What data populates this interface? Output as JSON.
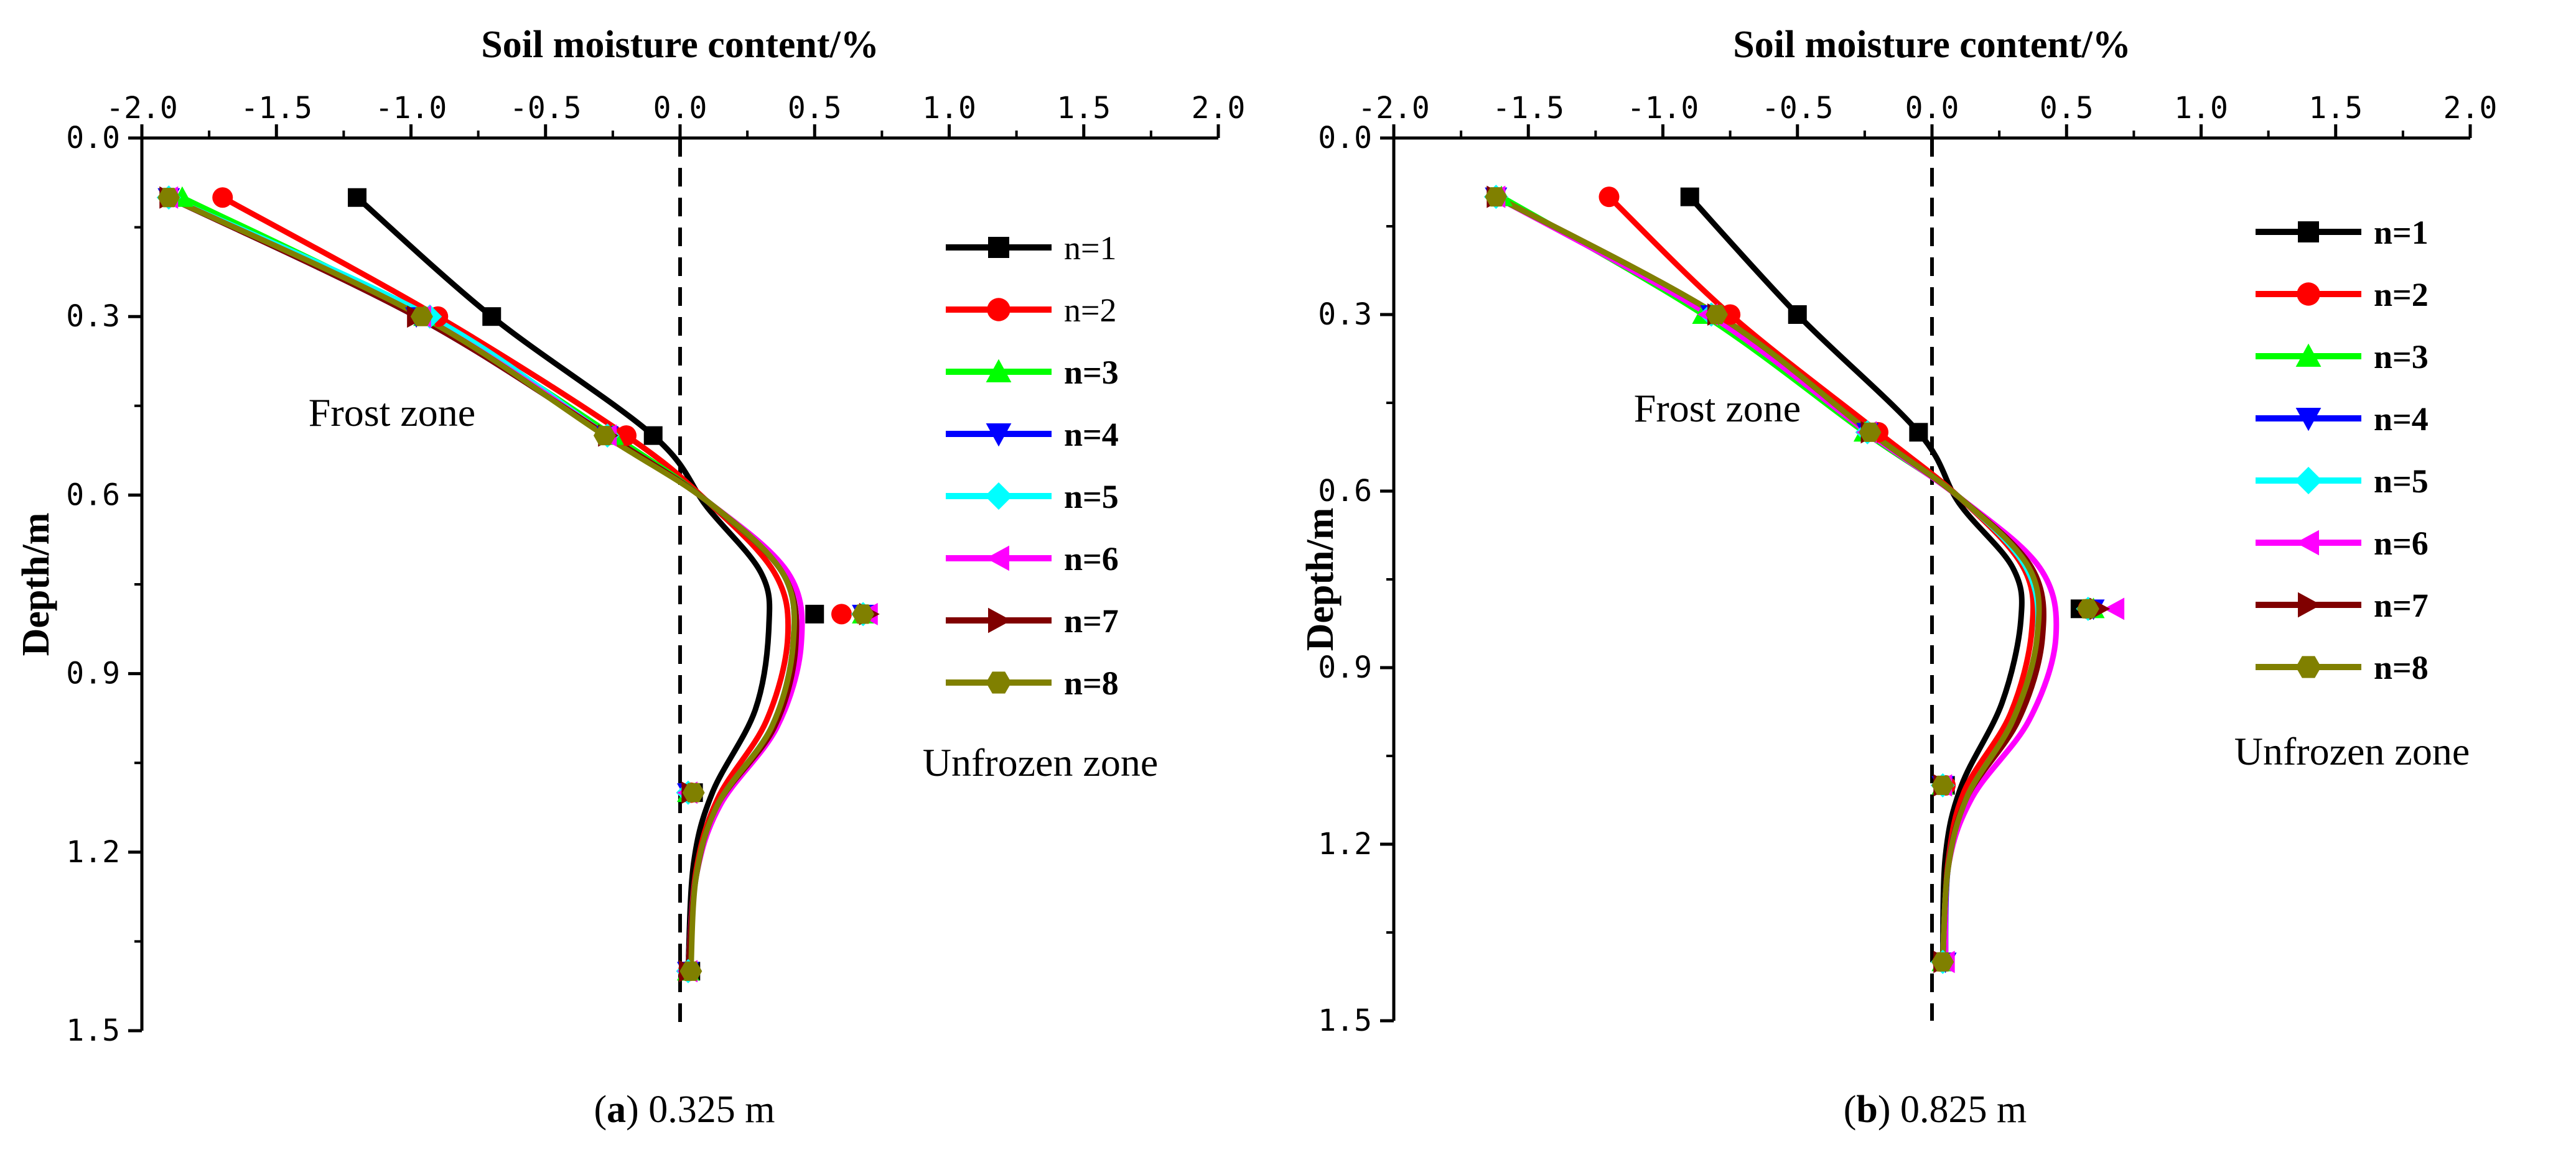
{
  "chart_data": [
    {
      "type": "line",
      "caption": {
        "prefix": "(",
        "letter": "a",
        "suffix": ") 0.325 m"
      },
      "xlabel": "Soil moisture content/%",
      "ylabel": "Depth/m",
      "xlim": [
        -2.0,
        2.0
      ],
      "ylim": [
        0.0,
        1.5
      ],
      "x_ticks": [
        "-2.0",
        "-1.5",
        "-1.0",
        "-0.5",
        "0.0",
        "0.5",
        "1.0",
        "1.5",
        "2.0"
      ],
      "y_ticks": [
        "0.0",
        "0.3",
        "0.6",
        "0.9",
        "1.2",
        "1.5"
      ],
      "annotations": [
        "Frost zone",
        "Unfrozen zone"
      ],
      "legend_position": "right",
      "zero_reference_line": 0.0,
      "depths": [
        0.1,
        0.3,
        0.5,
        0.8,
        1.1,
        1.4
      ],
      "series": [
        {
          "name": "n=1",
          "bold": false,
          "color": "#000000",
          "marker": "square",
          "x": [
            -1.2,
            -0.7,
            -0.1,
            0.5,
            0.05,
            0.04
          ],
          "curve": [
            [
              -1.2,
              0.1
            ],
            [
              -0.7,
              0.3
            ],
            [
              -0.1,
              0.5
            ],
            [
              0.1,
              0.62
            ],
            [
              0.3,
              0.73
            ],
            [
              0.33,
              0.82
            ],
            [
              0.28,
              0.96
            ],
            [
              0.12,
              1.1
            ],
            [
              0.05,
              1.22
            ],
            [
              0.03,
              1.4
            ]
          ]
        },
        {
          "name": "n=2",
          "bold": false,
          "color": "#ff0000",
          "marker": "circle",
          "x": [
            -1.7,
            -0.9,
            -0.2,
            0.6,
            0.04,
            0.03
          ],
          "curve": [
            [
              -1.7,
              0.1
            ],
            [
              -0.9,
              0.3
            ],
            [
              -0.2,
              0.5
            ],
            [
              0.1,
              0.61
            ],
            [
              0.35,
              0.73
            ],
            [
              0.4,
              0.84
            ],
            [
              0.32,
              0.98
            ],
            [
              0.14,
              1.11
            ],
            [
              0.06,
              1.23
            ],
            [
              0.03,
              1.4
            ]
          ]
        },
        {
          "name": "n=3",
          "bold": true,
          "color": "#00ff00",
          "marker": "triangle-up",
          "x": [
            -1.85,
            -0.95,
            -0.25,
            0.68,
            0.03,
            0.03
          ],
          "curve": [
            [
              -1.85,
              0.1
            ],
            [
              -0.95,
              0.3
            ],
            [
              -0.25,
              0.5
            ],
            [
              0.1,
              0.61
            ],
            [
              0.38,
              0.73
            ],
            [
              0.43,
              0.85
            ],
            [
              0.34,
              0.99
            ],
            [
              0.14,
              1.12
            ],
            [
              0.06,
              1.24
            ],
            [
              0.03,
              1.4
            ]
          ]
        },
        {
          "name": "n=4",
          "bold": true,
          "color": "#0000ff",
          "marker": "triangle-down",
          "x": [
            -1.9,
            -0.98,
            -0.27,
            0.68,
            0.03,
            0.03
          ],
          "curve": [
            [
              -1.9,
              0.1
            ],
            [
              -0.98,
              0.3
            ],
            [
              -0.27,
              0.5
            ],
            [
              0.1,
              0.61
            ],
            [
              0.38,
              0.73
            ],
            [
              0.42,
              0.85
            ],
            [
              0.34,
              0.99
            ],
            [
              0.14,
              1.12
            ],
            [
              0.06,
              1.24
            ],
            [
              0.03,
              1.4
            ]
          ]
        },
        {
          "name": "n=5",
          "bold": true,
          "color": "#00ffff",
          "marker": "diamond",
          "x": [
            -1.9,
            -0.93,
            -0.27,
            0.68,
            0.03,
            0.03
          ],
          "curve": [
            [
              -1.9,
              0.1
            ],
            [
              -0.93,
              0.3
            ],
            [
              -0.27,
              0.5
            ],
            [
              0.1,
              0.61
            ],
            [
              0.38,
              0.73
            ],
            [
              0.42,
              0.85
            ],
            [
              0.34,
              0.99
            ],
            [
              0.14,
              1.12
            ],
            [
              0.06,
              1.24
            ],
            [
              0.03,
              1.4
            ]
          ]
        },
        {
          "name": "n=6",
          "bold": true,
          "color": "#ff00ff",
          "marker": "triangle-left",
          "x": [
            -1.9,
            -0.96,
            -0.27,
            0.7,
            0.03,
            0.03
          ],
          "curve": [
            [
              -1.9,
              0.1
            ],
            [
              -0.96,
              0.3
            ],
            [
              -0.27,
              0.5
            ],
            [
              0.1,
              0.61
            ],
            [
              0.4,
              0.73
            ],
            [
              0.45,
              0.85
            ],
            [
              0.36,
              0.99
            ],
            [
              0.15,
              1.12
            ],
            [
              0.06,
              1.24
            ],
            [
              0.03,
              1.4
            ]
          ]
        },
        {
          "name": "n=7",
          "bold": true,
          "color": "#800000",
          "marker": "triangle-right",
          "x": [
            -1.9,
            -0.98,
            -0.27,
            0.7,
            0.04,
            0.03
          ],
          "curve": [
            [
              -1.9,
              0.1
            ],
            [
              -0.98,
              0.3
            ],
            [
              -0.27,
              0.5
            ],
            [
              0.1,
              0.61
            ],
            [
              0.38,
              0.73
            ],
            [
              0.43,
              0.85
            ],
            [
              0.35,
              0.99
            ],
            [
              0.14,
              1.12
            ],
            [
              0.06,
              1.24
            ],
            [
              0.03,
              1.4
            ]
          ]
        },
        {
          "name": "n=8",
          "bold": true,
          "color": "#808000",
          "marker": "hexagon",
          "x": [
            -1.9,
            -0.96,
            -0.28,
            0.68,
            0.05,
            0.04
          ],
          "curve": [
            [
              -1.9,
              0.1
            ],
            [
              -0.96,
              0.3
            ],
            [
              -0.28,
              0.5
            ],
            [
              0.1,
              0.61
            ],
            [
              0.38,
              0.73
            ],
            [
              0.42,
              0.85
            ],
            [
              0.34,
              0.99
            ],
            [
              0.14,
              1.12
            ],
            [
              0.06,
              1.24
            ],
            [
              0.04,
              1.4
            ]
          ]
        }
      ]
    },
    {
      "type": "line",
      "caption": {
        "prefix": "(",
        "letter": "b",
        "suffix": ") 0.825 m"
      },
      "xlabel": "Soil moisture content/%",
      "ylabel": "Depth/m",
      "xlim": [
        -2.0,
        2.0
      ],
      "ylim": [
        0.0,
        1.5
      ],
      "x_ticks": [
        "-2.0",
        "-1.5",
        "-1.0",
        "-0.5",
        "0.0",
        "0.5",
        "1.0",
        "1.5",
        "2.0"
      ],
      "y_ticks": [
        "0.0",
        "0.3",
        "0.6",
        "0.9",
        "1.2",
        "1.5"
      ],
      "annotations": [
        "Frost zone",
        "Unfrozen zone"
      ],
      "legend_position": "right",
      "zero_reference_line": 0.0,
      "depths": [
        0.1,
        0.3,
        0.5,
        0.8,
        1.1,
        1.4
      ],
      "series": [
        {
          "name": "n=1",
          "bold": true,
          "color": "#000000",
          "marker": "square",
          "x": [
            -0.9,
            -0.5,
            -0.05,
            0.55,
            0.05,
            0.04
          ],
          "curve": [
            [
              -0.9,
              0.1
            ],
            [
              -0.5,
              0.3
            ],
            [
              -0.05,
              0.5
            ],
            [
              0.1,
              0.62
            ],
            [
              0.3,
              0.73
            ],
            [
              0.33,
              0.82
            ],
            [
              0.26,
              0.96
            ],
            [
              0.11,
              1.1
            ],
            [
              0.05,
              1.22
            ],
            [
              0.04,
              1.4
            ]
          ]
        },
        {
          "name": "n=2",
          "bold": true,
          "color": "#ff0000",
          "marker": "circle",
          "x": [
            -1.2,
            -0.75,
            -0.2,
            0.58,
            0.05,
            0.04
          ],
          "curve": [
            [
              -1.2,
              0.1
            ],
            [
              -0.75,
              0.3
            ],
            [
              -0.2,
              0.5
            ],
            [
              0.1,
              0.61
            ],
            [
              0.34,
              0.73
            ],
            [
              0.37,
              0.84
            ],
            [
              0.29,
              0.98
            ],
            [
              0.12,
              1.11
            ],
            [
              0.06,
              1.23
            ],
            [
              0.04,
              1.4
            ]
          ]
        },
        {
          "name": "n=3",
          "bold": true,
          "color": "#00ff00",
          "marker": "triangle-up",
          "x": [
            -1.6,
            -0.85,
            -0.25,
            0.6,
            0.04,
            0.04
          ],
          "curve": [
            [
              -1.6,
              0.1
            ],
            [
              -0.85,
              0.3
            ],
            [
              -0.25,
              0.5
            ],
            [
              0.1,
              0.61
            ],
            [
              0.36,
              0.73
            ],
            [
              0.4,
              0.85
            ],
            [
              0.31,
              0.99
            ],
            [
              0.13,
              1.12
            ],
            [
              0.06,
              1.24
            ],
            [
              0.04,
              1.4
            ]
          ]
        },
        {
          "name": "n=4",
          "bold": true,
          "color": "#0000ff",
          "marker": "triangle-down",
          "x": [
            -1.62,
            -0.82,
            -0.24,
            0.6,
            0.04,
            0.05
          ],
          "curve": [
            [
              -1.62,
              0.1
            ],
            [
              -0.82,
              0.3
            ],
            [
              -0.24,
              0.5
            ],
            [
              0.1,
              0.61
            ],
            [
              0.36,
              0.73
            ],
            [
              0.4,
              0.85
            ],
            [
              0.31,
              0.99
            ],
            [
              0.13,
              1.12
            ],
            [
              0.06,
              1.24
            ],
            [
              0.05,
              1.4
            ]
          ]
        },
        {
          "name": "n=5",
          "bold": true,
          "color": "#00ffff",
          "marker": "diamond",
          "x": [
            -1.62,
            -0.82,
            -0.24,
            0.58,
            0.04,
            0.04
          ],
          "curve": [
            [
              -1.62,
              0.1
            ],
            [
              -0.82,
              0.3
            ],
            [
              -0.24,
              0.5
            ],
            [
              0.1,
              0.61
            ],
            [
              0.35,
              0.73
            ],
            [
              0.39,
              0.85
            ],
            [
              0.3,
              0.99
            ],
            [
              0.13,
              1.12
            ],
            [
              0.06,
              1.24
            ],
            [
              0.04,
              1.4
            ]
          ]
        },
        {
          "name": "n=6",
          "bold": true,
          "color": "#ff00ff",
          "marker": "triangle-left",
          "x": [
            -1.62,
            -0.83,
            -0.24,
            0.68,
            0.04,
            0.05
          ],
          "curve": [
            [
              -1.62,
              0.1
            ],
            [
              -0.83,
              0.3
            ],
            [
              -0.24,
              0.5
            ],
            [
              0.1,
              0.61
            ],
            [
              0.4,
              0.73
            ],
            [
              0.46,
              0.85
            ],
            [
              0.36,
              0.99
            ],
            [
              0.15,
              1.12
            ],
            [
              0.06,
              1.24
            ],
            [
              0.05,
              1.4
            ]
          ]
        },
        {
          "name": "n=7",
          "bold": true,
          "color": "#800000",
          "marker": "triangle-right",
          "x": [
            -1.62,
            -0.8,
            -0.23,
            0.62,
            0.04,
            0.04
          ],
          "curve": [
            [
              -1.62,
              0.1
            ],
            [
              -0.8,
              0.3
            ],
            [
              -0.23,
              0.5
            ],
            [
              0.1,
              0.61
            ],
            [
              0.37,
              0.73
            ],
            [
              0.41,
              0.85
            ],
            [
              0.32,
              0.99
            ],
            [
              0.13,
              1.12
            ],
            [
              0.06,
              1.24
            ],
            [
              0.04,
              1.4
            ]
          ]
        },
        {
          "name": "n=8",
          "bold": true,
          "color": "#808000",
          "marker": "hexagon",
          "x": [
            -1.62,
            -0.8,
            -0.23,
            0.58,
            0.04,
            0.04
          ],
          "curve": [
            [
              -1.62,
              0.1
            ],
            [
              -0.8,
              0.3
            ],
            [
              -0.23,
              0.5
            ],
            [
              0.1,
              0.61
            ],
            [
              0.36,
              0.73
            ],
            [
              0.39,
              0.85
            ],
            [
              0.3,
              0.99
            ],
            [
              0.13,
              1.12
            ],
            [
              0.06,
              1.24
            ],
            [
              0.04,
              1.4
            ]
          ]
        }
      ]
    }
  ]
}
